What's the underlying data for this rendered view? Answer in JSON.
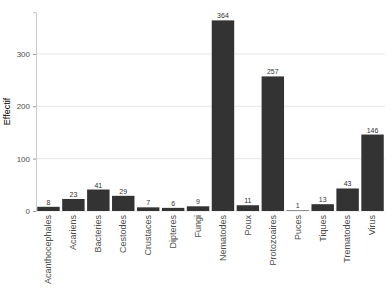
{
  "chart_data": {
    "type": "bar",
    "y_label": "Effectif",
    "categories": [
      "Acanthocephales",
      "Acariens",
      "Bacteries",
      "Cestodes",
      "Crustaces",
      "Dipteres",
      "Fungi",
      "Nematodes",
      "Poux",
      "Protozoaires",
      "Puces",
      "Tiques",
      "Trematodes",
      "Virus"
    ],
    "values": [
      8,
      23,
      41,
      29,
      7,
      6,
      9,
      364,
      11,
      257,
      1,
      13,
      43,
      146
    ],
    "color": "#333333",
    "ylim": [
      0,
      380
    ],
    "yticks": [
      0,
      100,
      200,
      300
    ],
    "grid": true,
    "data_labels": true
  }
}
